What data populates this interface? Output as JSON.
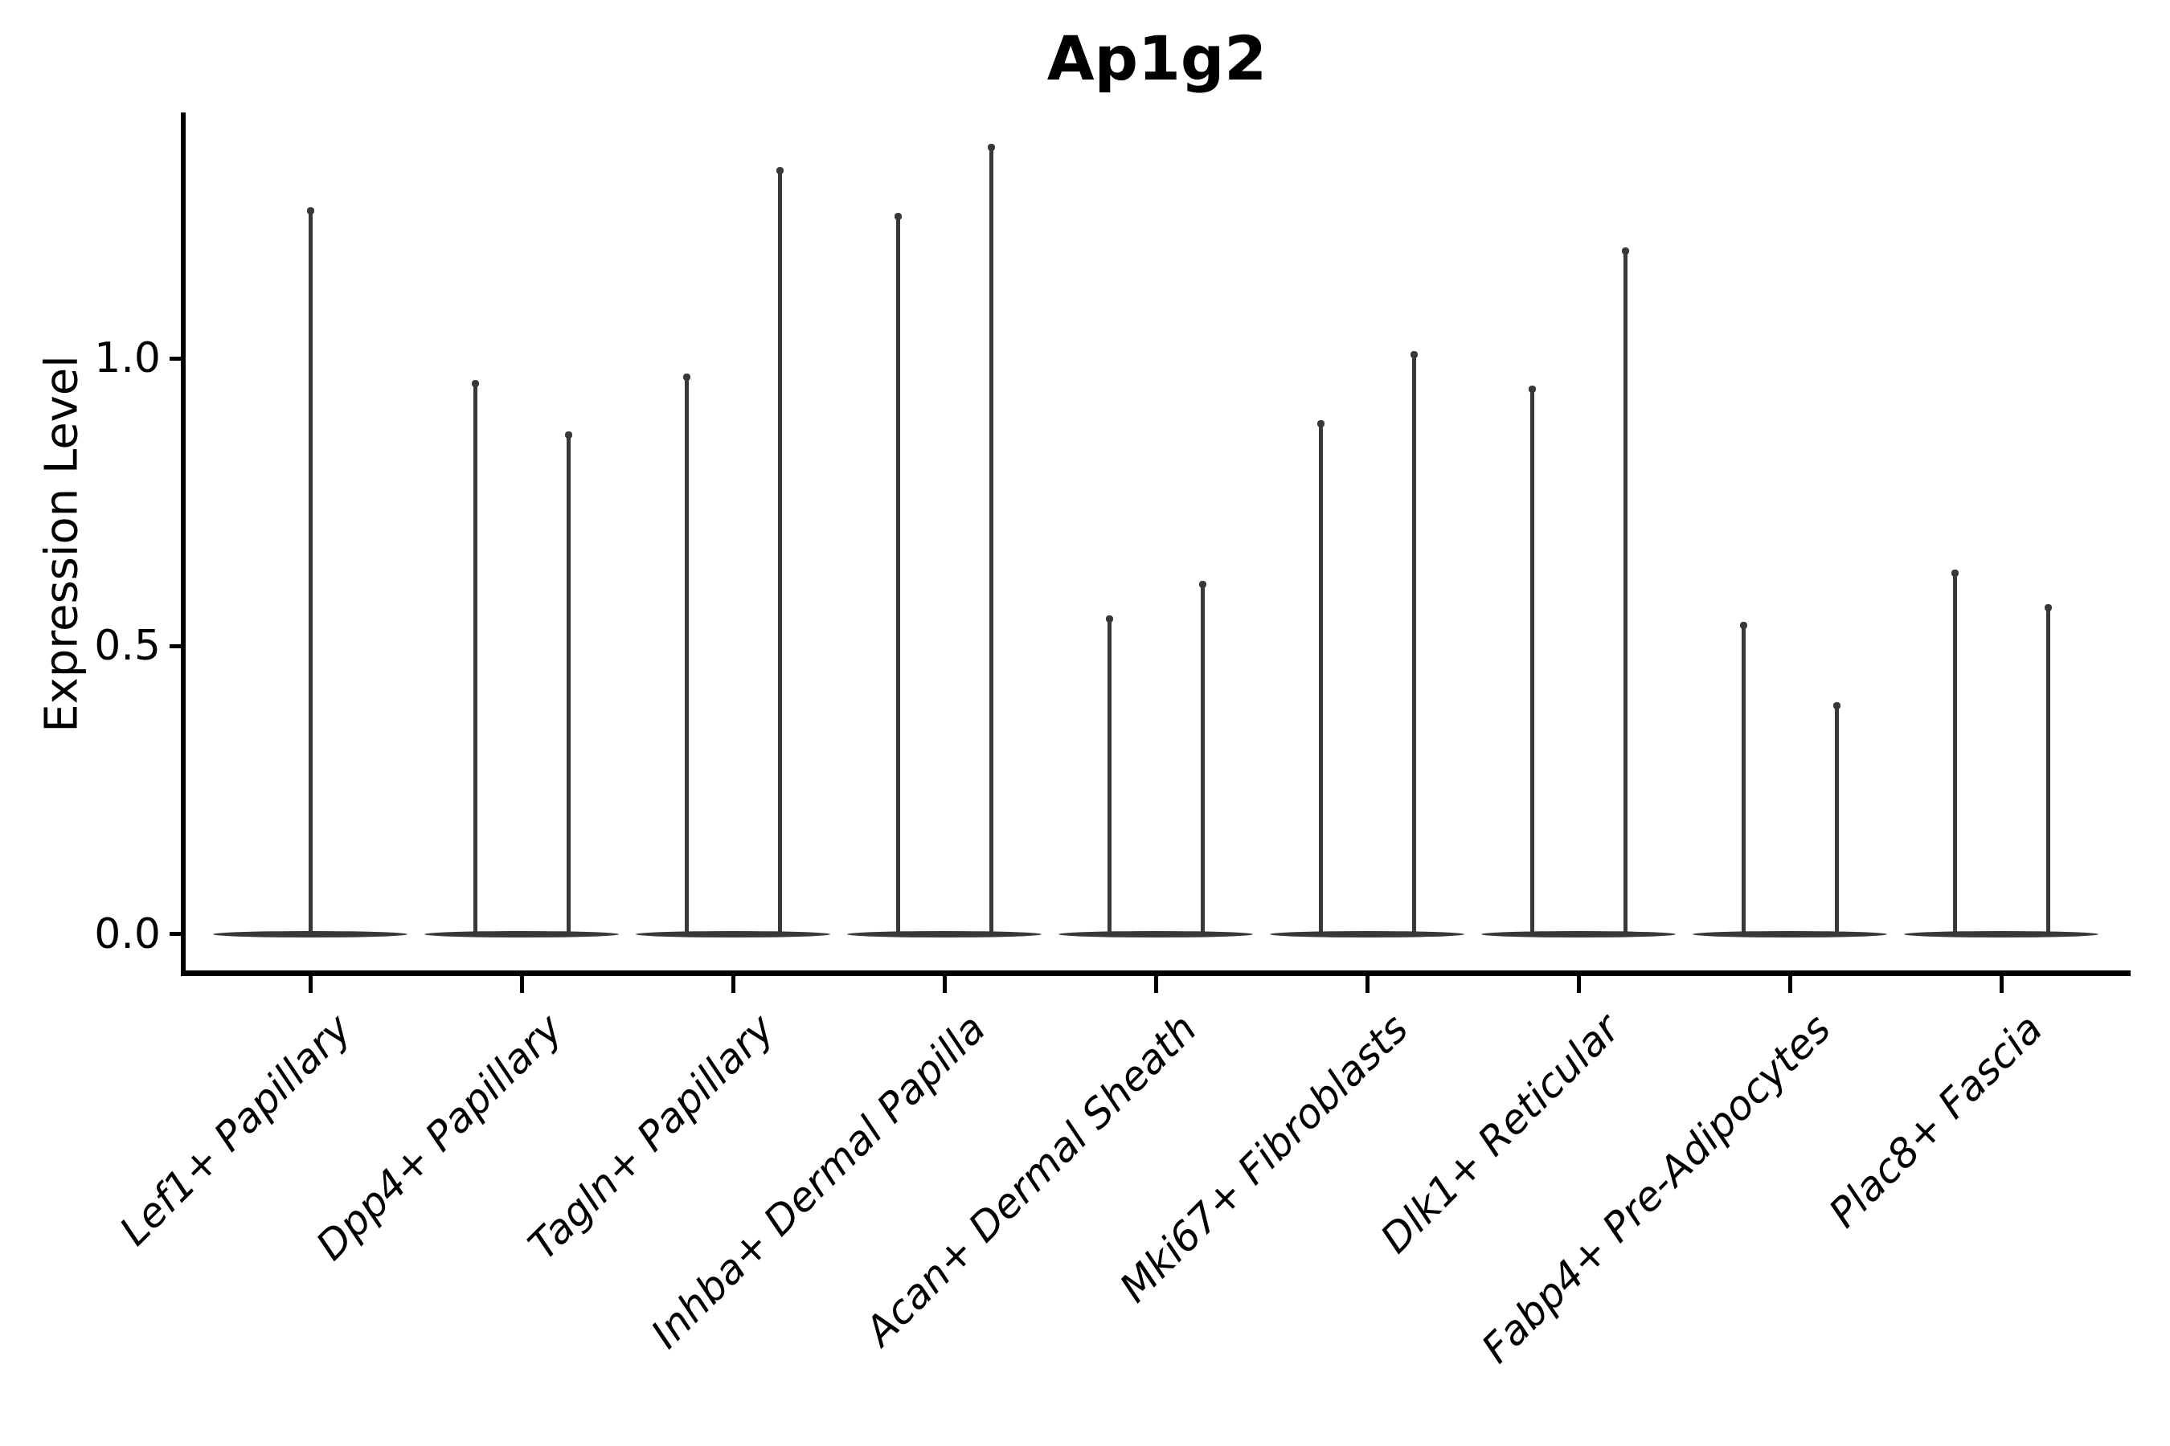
{
  "title": "Ap1g2",
  "y_axis": {
    "label": "Expression Level",
    "tick_labels": [
      "0.0",
      "0.5",
      "1.0"
    ],
    "tick_values": [
      0.0,
      0.5,
      1.0
    ]
  },
  "colors": {
    "background": "#ffffff",
    "axis": "#000000",
    "violin": "#383838",
    "text": "#000000"
  },
  "chart_data": {
    "type": "violin",
    "title": "Ap1g2",
    "xlabel": "",
    "ylabel": "Expression Level",
    "ylim": [
      -0.07,
      1.43
    ],
    "yticks": [
      0.0,
      0.5,
      1.0
    ],
    "grid": false,
    "legend": "none",
    "x_tick_label_rotation_deg": 45,
    "violin_shape": "density mass concentrated at 0 with a thin vertical tail reaching the maximum value",
    "categories": [
      "Lef1+ Papillary",
      "Dpp4+ Papillary",
      "Tagln+ Papillary",
      "Inhba+ Dermal Papilla",
      "Acan+ Dermal Sheath",
      "Mki67+ Fibroblasts",
      "Dlk1+ Reticular",
      "Fabp4+ Pre-Adipocytes",
      "Plac8+ Fascia"
    ],
    "series": [
      {
        "category": "Lef1+ Papillary",
        "violin_max_values": [
          1.26
        ]
      },
      {
        "category": "Dpp4+ Papillary",
        "violin_max_values": [
          0.96,
          0.87
        ]
      },
      {
        "category": "Tagln+ Papillary",
        "violin_max_values": [
          0.97,
          1.33
        ]
      },
      {
        "category": "Inhba+ Dermal Papilla",
        "violin_max_values": [
          1.25,
          1.37
        ]
      },
      {
        "category": "Acan+ Dermal Sheath",
        "violin_max_values": [
          0.55,
          0.61
        ]
      },
      {
        "category": "Mki67+ Fibroblasts",
        "violin_max_values": [
          0.89,
          1.01
        ]
      },
      {
        "category": "Dlk1+ Reticular",
        "violin_max_values": [
          0.95,
          1.19
        ]
      },
      {
        "category": "Fabp4+ Pre-Adipocytes",
        "violin_max_values": [
          0.54,
          0.4
        ]
      },
      {
        "category": "Plac8+ Fascia",
        "violin_max_values": [
          0.63,
          0.57
        ]
      }
    ]
  }
}
